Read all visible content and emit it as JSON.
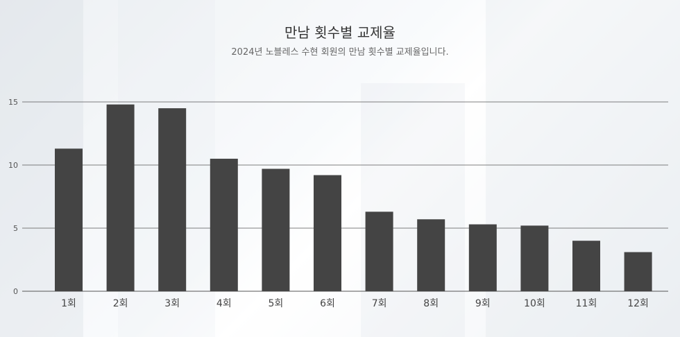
{
  "chart_data": {
    "type": "bar",
    "title": "만남 횟수별 교제율",
    "subtitle": "2024년 노블레스 수현 회원의 만남 횟수별 교제율입니다.",
    "categories": [
      "1회",
      "2회",
      "3회",
      "4회",
      "5회",
      "6회",
      "7회",
      "8회",
      "9회",
      "10회",
      "11회",
      "12회"
    ],
    "values": [
      11.3,
      14.8,
      14.5,
      10.5,
      9.7,
      9.2,
      6.3,
      5.7,
      5.3,
      5.2,
      4.0,
      3.1
    ],
    "xlabel": "",
    "ylabel": "",
    "ylim": [
      0,
      15
    ],
    "yticks": [
      0,
      5,
      10,
      15
    ],
    "grid": true,
    "bar_color": "#444444",
    "grid_color": "#555555"
  }
}
